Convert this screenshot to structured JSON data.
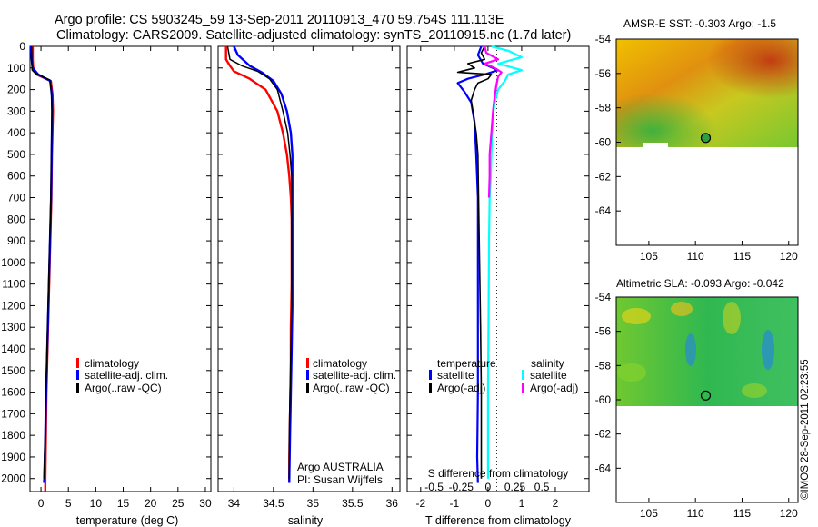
{
  "header": {
    "line1": "Argo profile: CS 5903245_59 13-Sep-2011 20110913_470 59.754S 111.113E",
    "line2": "Climatology: CARS2009. Satellite-adjusted climatology: synTS_20110915.nc (1.7d later)"
  },
  "colors": {
    "red": "#ff0000",
    "blue": "#0000ff",
    "black": "#000000",
    "cyan": "#00ffff",
    "magenta": "#ff00ff"
  },
  "chart_data": [
    {
      "type": "line",
      "id": "temp",
      "xlabel": "temperature (deg C)",
      "xlim": [
        -2,
        31
      ],
      "ylim": [
        0,
        2060
      ],
      "xticks": [
        "0",
        "5",
        "10",
        "15",
        "20",
        "25",
        "30"
      ],
      "xtick_values": [
        0,
        5,
        10,
        15,
        20,
        25,
        30
      ],
      "yticks": [
        "0",
        "100",
        "200",
        "300",
        "400",
        "500",
        "600",
        "700",
        "800",
        "900",
        "1000",
        "1100",
        "1200",
        "1300",
        "1400",
        "1500",
        "1600",
        "1700",
        "1800",
        "1900",
        "2000"
      ],
      "ytick_values": [
        0,
        100,
        200,
        300,
        400,
        500,
        600,
        700,
        800,
        900,
        1000,
        1100,
        1200,
        1300,
        1400,
        1500,
        1600,
        1700,
        1800,
        1900,
        2000
      ],
      "legend": [
        "climatology",
        "satellite-adj. clim.",
        "Argo(..raw -QC)"
      ],
      "series": [
        {
          "name": "climatology",
          "color": "red",
          "width": 2.4,
          "points": [
            [
              -1.5,
              0
            ],
            [
              -1.5,
              60
            ],
            [
              -1.4,
              110
            ],
            [
              -0.8,
              130
            ],
            [
              1.8,
              160
            ],
            [
              2.1,
              220
            ],
            [
              2.2,
              300
            ],
            [
              2.1,
              400
            ],
            [
              2.0,
              500
            ],
            [
              1.95,
              600
            ],
            [
              1.9,
              700
            ],
            [
              1.8,
              800
            ],
            [
              1.7,
              900
            ],
            [
              1.6,
              1000
            ],
            [
              1.5,
              1100
            ],
            [
              1.4,
              1200
            ],
            [
              1.3,
              1300
            ],
            [
              1.2,
              1400
            ],
            [
              1.1,
              1500
            ],
            [
              1.0,
              1600
            ],
            [
              0.95,
              1700
            ],
            [
              0.9,
              1800
            ],
            [
              0.85,
              1900
            ],
            [
              0.8,
              2000
            ],
            [
              0.78,
              2060
            ]
          ]
        },
        {
          "name": "satellite-adj. clim.",
          "color": "blue",
          "width": 2.4,
          "points": [
            [
              -1.8,
              0
            ],
            [
              -1.7,
              60
            ],
            [
              -1.5,
              100
            ],
            [
              -0.5,
              130
            ],
            [
              1.7,
              160
            ],
            [
              2.0,
              230
            ],
            [
              2.05,
              300
            ],
            [
              2.0,
              400
            ],
            [
              1.95,
              500
            ],
            [
              1.9,
              600
            ],
            [
              1.85,
              700
            ],
            [
              1.75,
              800
            ],
            [
              1.65,
              900
            ],
            [
              1.55,
              1000
            ],
            [
              1.45,
              1100
            ],
            [
              1.35,
              1200
            ],
            [
              1.25,
              1300
            ],
            [
              1.15,
              1400
            ],
            [
              1.05,
              1500
            ],
            [
              0.95,
              1600
            ],
            [
              0.85,
              1700
            ],
            [
              0.8,
              1800
            ],
            [
              0.7,
              1900
            ],
            [
              0.6,
              2000
            ],
            [
              0.55,
              2020
            ]
          ]
        },
        {
          "name": "Argo(..raw -QC)",
          "color": "black",
          "width": 1.5,
          "points": [
            [
              -1.7,
              0
            ],
            [
              -1.7,
              70
            ],
            [
              -1.6,
              110
            ],
            [
              -1.0,
              125
            ],
            [
              1.6,
              155
            ],
            [
              1.9,
              210
            ],
            [
              2.0,
              300
            ],
            [
              1.95,
              400
            ],
            [
              1.9,
              500
            ],
            [
              1.85,
              600
            ],
            [
              1.8,
              700
            ],
            [
              1.7,
              800
            ],
            [
              1.6,
              900
            ],
            [
              1.5,
              1000
            ],
            [
              1.4,
              1100
            ],
            [
              1.3,
              1200
            ],
            [
              1.2,
              1300
            ],
            [
              1.1,
              1400
            ],
            [
              1.0,
              1500
            ],
            [
              0.9,
              1600
            ],
            [
              0.8,
              1700
            ],
            [
              0.75,
              1800
            ],
            [
              0.65,
              1900
            ],
            [
              0.55,
              2000
            ]
          ]
        }
      ]
    },
    {
      "type": "line",
      "id": "sal",
      "xlabel": "salinity",
      "xlim": [
        33.8,
        36.1
      ],
      "ylim": [
        0,
        2060
      ],
      "xticks": [
        "34",
        "34.5",
        "35",
        "35.5",
        "36"
      ],
      "xtick_values": [
        34,
        34.5,
        35,
        35.5,
        36
      ],
      "legend": [
        "climatology",
        "satellite-adj. clim.",
        "Argo(..raw -QC)"
      ],
      "annotation": [
        "Argo AUSTRALIA",
        "PI: Susan Wijffels"
      ],
      "series": [
        {
          "name": "climatology",
          "color": "red",
          "width": 2.4,
          "points": [
            [
              33.9,
              0
            ],
            [
              33.9,
              60
            ],
            [
              33.95,
              90
            ],
            [
              34.0,
              115
            ],
            [
              34.2,
              150
            ],
            [
              34.4,
              200
            ],
            [
              34.55,
              300
            ],
            [
              34.62,
              400
            ],
            [
              34.67,
              500
            ],
            [
              34.7,
              600
            ],
            [
              34.72,
              700
            ],
            [
              34.73,
              800
            ],
            [
              34.73,
              900
            ],
            [
              34.73,
              1100
            ],
            [
              34.72,
              1300
            ],
            [
              34.72,
              1500
            ],
            [
              34.71,
              1700
            ],
            [
              34.7,
              1900
            ],
            [
              34.7,
              2020
            ]
          ]
        },
        {
          "name": "satellite-adj. clim.",
          "color": "blue",
          "width": 2.4,
          "points": [
            [
              34.0,
              0
            ],
            [
              34.05,
              40
            ],
            [
              34.2,
              90
            ],
            [
              34.35,
              120
            ],
            [
              34.5,
              160
            ],
            [
              34.6,
              220
            ],
            [
              34.67,
              300
            ],
            [
              34.72,
              400
            ],
            [
              34.74,
              500
            ],
            [
              34.74,
              600
            ],
            [
              34.74,
              800
            ],
            [
              34.74,
              1000
            ],
            [
              34.74,
              1200
            ],
            [
              34.73,
              1400
            ],
            [
              34.72,
              1600
            ],
            [
              34.71,
              1800
            ],
            [
              34.7,
              2000
            ],
            [
              34.7,
              2020
            ]
          ]
        },
        {
          "name": "Argo(..raw -QC)",
          "color": "black",
          "width": 1.5,
          "points": [
            [
              33.92,
              0
            ],
            [
              33.95,
              60
            ],
            [
              34.1,
              90
            ],
            [
              34.3,
              115
            ],
            [
              34.45,
              150
            ],
            [
              34.55,
              200
            ],
            [
              34.62,
              300
            ],
            [
              34.68,
              400
            ],
            [
              34.71,
              500
            ],
            [
              34.73,
              600
            ],
            [
              34.73,
              800
            ],
            [
              34.73,
              1000
            ],
            [
              34.73,
              1200
            ],
            [
              34.72,
              1400
            ],
            [
              34.71,
              1600
            ],
            [
              34.7,
              1800
            ],
            [
              34.7,
              2000
            ]
          ]
        }
      ]
    },
    {
      "type": "line",
      "id": "diff",
      "xlabel": "T difference from climatology",
      "toplabel": "S difference from climatology",
      "xlim": [
        -2.4,
        3.0
      ],
      "ylim": [
        0,
        2060
      ],
      "xticks": [
        "-2",
        "-1",
        "0",
        "1",
        "2"
      ],
      "xtick_values": [
        -2,
        -1,
        0,
        1,
        2
      ],
      "sticks": [
        "-0.5",
        "-0.25",
        "0",
        "0.25",
        "0.5"
      ],
      "stick_positions": [
        -1.6,
        -0.8,
        0,
        0.8,
        1.6
      ],
      "legend_temp_title": "temperature",
      "legend_sal_title": "salinity",
      "legend_temp": [
        "satellite",
        "Argo(-adj)"
      ],
      "legend_sal": [
        "satellite",
        "Argo(-adj)"
      ],
      "series": [
        {
          "name": "T satellite",
          "color": "blue",
          "width": 2.2,
          "points": [
            [
              -0.2,
              0
            ],
            [
              -0.3,
              40
            ],
            [
              -0.15,
              80
            ],
            [
              0.3,
              110
            ],
            [
              -0.1,
              130
            ],
            [
              -0.6,
              150
            ],
            [
              -0.9,
              170
            ],
            [
              -0.7,
              210
            ],
            [
              -0.5,
              260
            ],
            [
              -0.4,
              350
            ],
            [
              -0.35,
              500
            ],
            [
              -0.3,
              700
            ],
            [
              -0.3,
              1000
            ],
            [
              -0.3,
              1300
            ],
            [
              -0.3,
              1600
            ],
            [
              -0.32,
              1900
            ],
            [
              -0.3,
              2020
            ]
          ]
        },
        {
          "name": "T Argo(-adj)",
          "color": "black",
          "width": 1.6,
          "points": [
            [
              -0.1,
              0
            ],
            [
              -0.2,
              30
            ],
            [
              -0.1,
              60
            ],
            [
              -0.6,
              80
            ],
            [
              -0.4,
              100
            ],
            [
              -0.9,
              120
            ],
            [
              0.1,
              130
            ],
            [
              0.0,
              150
            ],
            [
              -0.3,
              170
            ],
            [
              -0.4,
              200
            ],
            [
              -0.5,
              250
            ],
            [
              -0.45,
              300
            ],
            [
              -0.35,
              400
            ],
            [
              -0.3,
              500
            ],
            [
              -0.28,
              700
            ],
            [
              -0.25,
              1000
            ],
            [
              -0.22,
              1300
            ],
            [
              -0.2,
              1600
            ],
            [
              -0.2,
              1900
            ],
            [
              -0.2,
              2000
            ]
          ]
        },
        {
          "name": "S satellite",
          "color": "cyan",
          "width": 2.2,
          "points": [
            [
              0.1,
              0
            ],
            [
              0.6,
              20
            ],
            [
              1.0,
              50
            ],
            [
              0.3,
              80
            ],
            [
              1.0,
              110
            ],
            [
              0.6,
              130
            ],
            [
              0.5,
              160
            ],
            [
              0.3,
              200
            ],
            [
              0.2,
              260
            ],
            [
              0.15,
              320
            ],
            [
              0.12,
              400
            ],
            [
              0.1,
              500
            ],
            [
              0.08,
              600
            ],
            [
              0.05,
              700
            ],
            [
              0.03,
              900
            ],
            [
              0.02,
              1200
            ],
            [
              0.0,
              1600
            ],
            [
              0.0,
              2000
            ]
          ]
        },
        {
          "name": "S Argo(-adj)",
          "color": "magenta",
          "width": 2.2,
          "points": [
            [
              -0.1,
              0
            ],
            [
              -0.05,
              30
            ],
            [
              0.3,
              60
            ],
            [
              -0.1,
              80
            ],
            [
              0.2,
              100
            ],
            [
              0.4,
              120
            ],
            [
              0.3,
              140
            ],
            [
              0.25,
              180
            ],
            [
              0.2,
              230
            ],
            [
              0.15,
              300
            ],
            [
              0.1,
              400
            ],
            [
              0.05,
              500
            ],
            [
              0.05,
              600
            ],
            [
              0.03,
              700
            ]
          ]
        }
      ]
    },
    {
      "type": "heatmap",
      "id": "sst",
      "title": "AMSR-E SST: -0.303 Argo: -1.5",
      "xticks": [
        "105",
        "110",
        "115",
        "120"
      ],
      "xtick_values": [
        105,
        110,
        115,
        120
      ],
      "yticks": [
        "-54",
        "-56",
        "-58",
        "-60",
        "-62",
        "-64"
      ],
      "ytick_values": [
        -54,
        -56,
        -58,
        -60,
        -62,
        -64
      ],
      "xlim": [
        101.5,
        121
      ],
      "ylim": [
        -66,
        -54
      ],
      "marker": [
        111.1,
        -59.75
      ]
    },
    {
      "type": "heatmap",
      "id": "sla",
      "title": "Altimetric SLA: -0.093 Argo: -0.042",
      "xticks": [
        "105",
        "110",
        "115",
        "120"
      ],
      "xtick_values": [
        105,
        110,
        115,
        120
      ],
      "yticks": [
        "-54",
        "-56",
        "-58",
        "-60",
        "-62",
        "-64"
      ],
      "ytick_values": [
        -54,
        -56,
        -58,
        -60,
        -62,
        -64
      ],
      "xlim": [
        101.5,
        121
      ],
      "ylim": [
        -66,
        -54
      ],
      "marker": [
        111.1,
        -59.75
      ]
    }
  ],
  "footer": {
    "credit": "©IMOS 28-Sep-2011 02:23:55"
  }
}
